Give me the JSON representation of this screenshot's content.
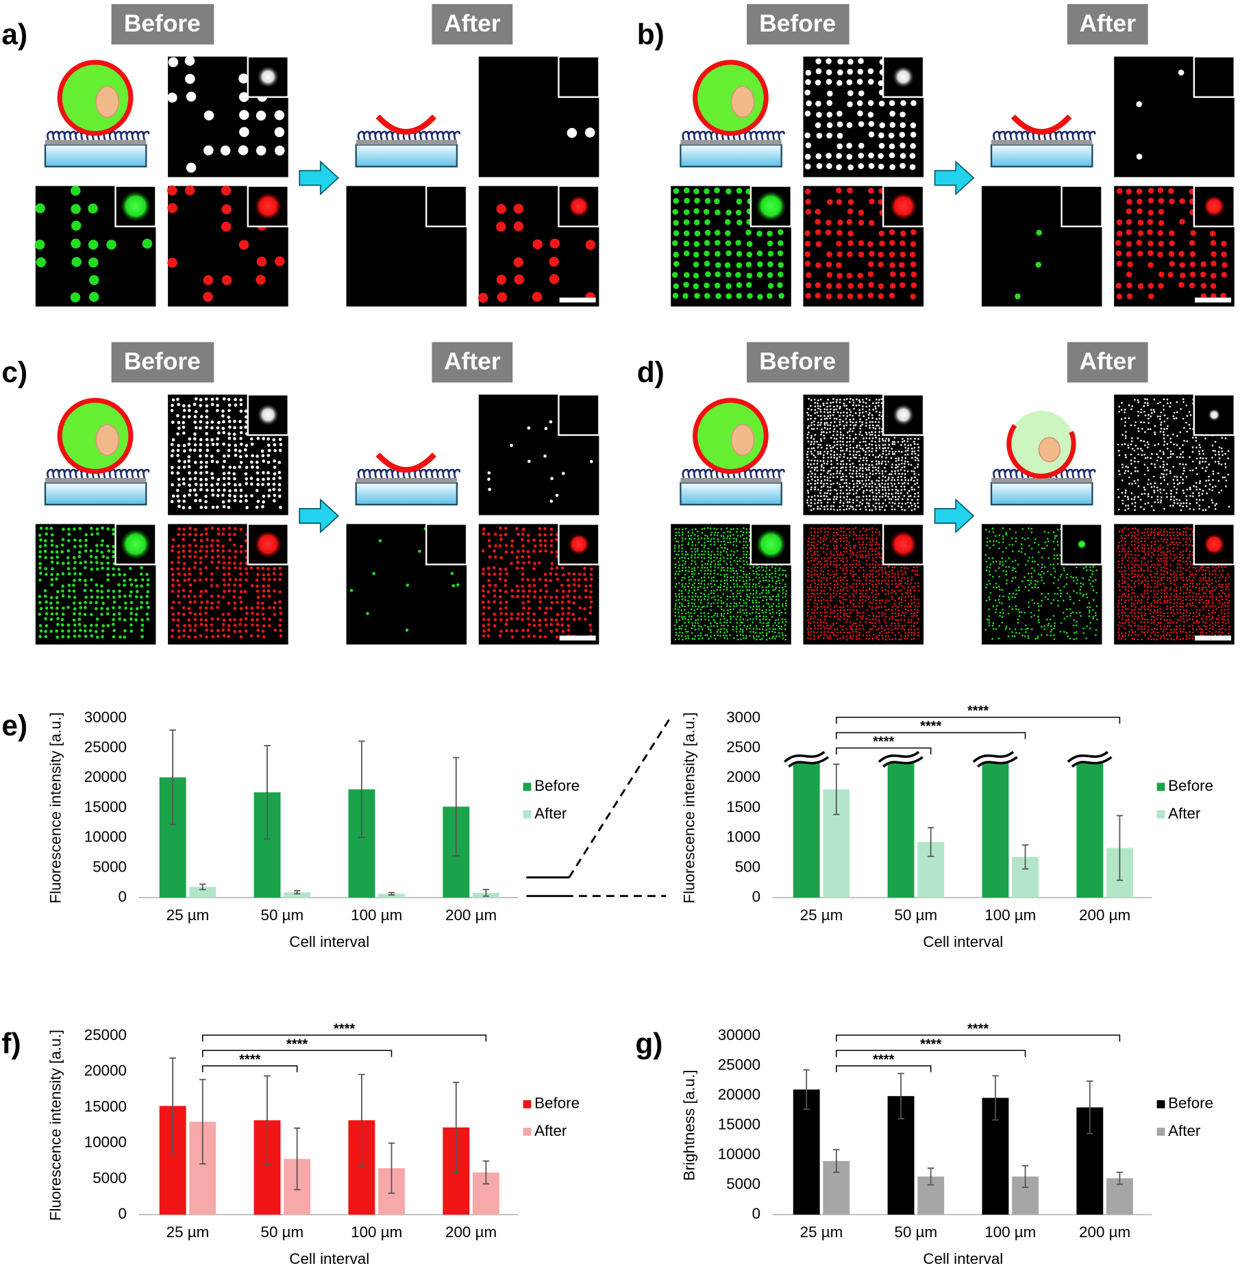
{
  "figure": {
    "panel_labels": [
      "a)",
      "b)",
      "c)",
      "d)"
    ],
    "before": "Before",
    "after": "After"
  },
  "chart_data": [
    {
      "type": "bar",
      "panel_label": "e)",
      "x_label": "Cell interval",
      "y_label": "Fluorescence intensity [a.u.]",
      "categories": [
        "25 µm",
        "50 µm",
        "100 µm",
        "200 µm"
      ],
      "series": [
        {
          "name": "Before",
          "color": "#1aa34a",
          "values": [
            20100,
            17600,
            18100,
            15200
          ],
          "errors": [
            7900,
            7800,
            8050,
            8200
          ]
        },
        {
          "name": "After",
          "color": "#b3e6c8",
          "values": [
            1800,
            900,
            650,
            800
          ],
          "errors": [
            450,
            250,
            200,
            550
          ]
        }
      ],
      "ylim": [
        0,
        30000
      ],
      "yticks": [
        0,
        5000,
        10000,
        15000,
        20000,
        25000,
        30000
      ],
      "legend": "right"
    },
    {
      "type": "bar",
      "x_label": "Cell interval",
      "y_label": "Fluorescence intensity [a.u.]",
      "categories": [
        "25 µm",
        "50 µm",
        "100 µm",
        "200 µm"
      ],
      "series": [
        {
          "name": "Before",
          "color": "#1aa34a",
          "values": [
            20100,
            17600,
            18100,
            15200
          ]
        },
        {
          "name": "After",
          "color": "#b3e6c8",
          "values": [
            1810,
            930,
            680,
            830
          ],
          "errors": [
            420,
            240,
            200,
            540
          ]
        }
      ],
      "ylim": [
        0,
        3000
      ],
      "yticks": [
        0,
        500,
        1000,
        1500,
        2000,
        2500,
        3000
      ],
      "axis_break": true,
      "legend": "right",
      "annotations": [
        "****",
        "****",
        "****"
      ]
    },
    {
      "type": "bar",
      "panel_label": "f)",
      "x_label": "Cell interval",
      "y_label": "Fluorescence intensity [a.u.]",
      "categories": [
        "25 µm",
        "50 µm",
        "100 µm",
        "200 µm"
      ],
      "series": [
        {
          "name": "Before",
          "color": "#f01414",
          "values": [
            15200,
            13200,
            13200,
            12200
          ],
          "errors": [
            6700,
            6200,
            6400,
            6300
          ]
        },
        {
          "name": "After",
          "color": "#f7a8a8",
          "values": [
            13000,
            7800,
            6500,
            5900
          ],
          "errors": [
            5900,
            4300,
            3500,
            1600
          ]
        }
      ],
      "ylim": [
        0,
        25000
      ],
      "yticks": [
        0,
        5000,
        10000,
        15000,
        20000,
        25000
      ],
      "legend": "right",
      "annotations": [
        "****",
        "****",
        "****"
      ]
    },
    {
      "type": "bar",
      "panel_label": "g)",
      "x_label": "Cell interval",
      "y_label": "Brightness [a.u.]",
      "categories": [
        "25 µm",
        "50 µm",
        "100 µm",
        "200 µm"
      ],
      "series": [
        {
          "name": "Before",
          "color": "#000000",
          "values": [
            21000,
            19900,
            19600,
            18000
          ],
          "errors": [
            3300,
            3800,
            3700,
            4400
          ]
        },
        {
          "name": "After",
          "color": "#a6a6a6",
          "values": [
            9000,
            6400,
            6400,
            6100
          ],
          "errors": [
            1900,
            1400,
            1800,
            1000
          ]
        }
      ],
      "ylim": [
        0,
        30000
      ],
      "yticks": [
        0,
        5000,
        10000,
        15000,
        20000,
        25000,
        30000
      ],
      "legend": "right",
      "annotations": [
        "****",
        "****",
        "****"
      ]
    }
  ]
}
